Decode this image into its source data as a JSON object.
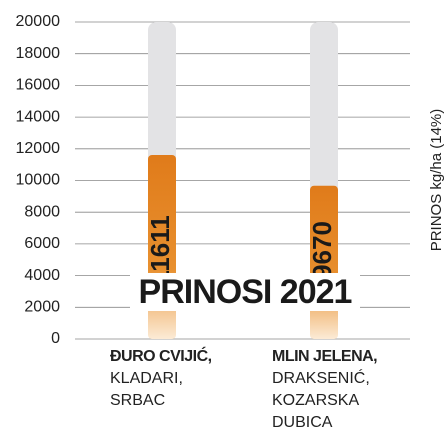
{
  "chart_data": {
    "type": "bar",
    "title": "PRINOSI 2021",
    "y_axis_label": "PRINOS kg/ha (14%)",
    "categories": [
      "ĐURO CVIJIĆ,",
      "MLIN JELENA,"
    ],
    "category_details": [
      "KLADARI, SRBAC",
      "DRAKSENIĆ, KOZARSKA DUBICA"
    ],
    "values": [
      11611,
      9670
    ],
    "color": "#e07b1a",
    "ylim": [
      0,
      20000
    ],
    "yticks": [
      0,
      2000,
      4000,
      6000,
      8000,
      10000,
      12000,
      14000,
      16000,
      18000,
      20000
    ],
    "grid": true
  }
}
